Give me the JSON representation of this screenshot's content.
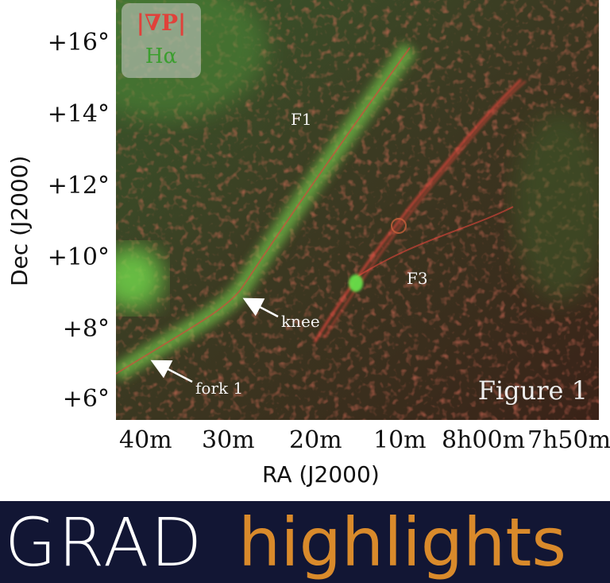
{
  "figure": {
    "legend": {
      "line1": "|∇P|",
      "line2": "Hα"
    },
    "annotations": {
      "f1": "F1",
      "f3": "F3",
      "knee": "knee",
      "fork": "fork 1"
    },
    "figure_label": "Figure 1",
    "y_axis": {
      "label": "Dec (J2000)",
      "ticks": [
        "+16°",
        "+14°",
        "+12°",
        "+10°",
        "+8°",
        "+6°"
      ]
    },
    "x_axis": {
      "label": "RA (J2000)",
      "ticks": [
        "40m",
        "30m",
        "20m",
        "10m",
        "8h00m",
        "7h50m"
      ]
    },
    "colors": {
      "gradient": "#e0413a",
      "halpha": "#3c9e2f"
    }
  },
  "banner": {
    "left": "GRAD",
    "right": "highlights",
    "colors": {
      "background": "#121634",
      "left": "#ffffff",
      "right": "#d98a2b"
    }
  }
}
